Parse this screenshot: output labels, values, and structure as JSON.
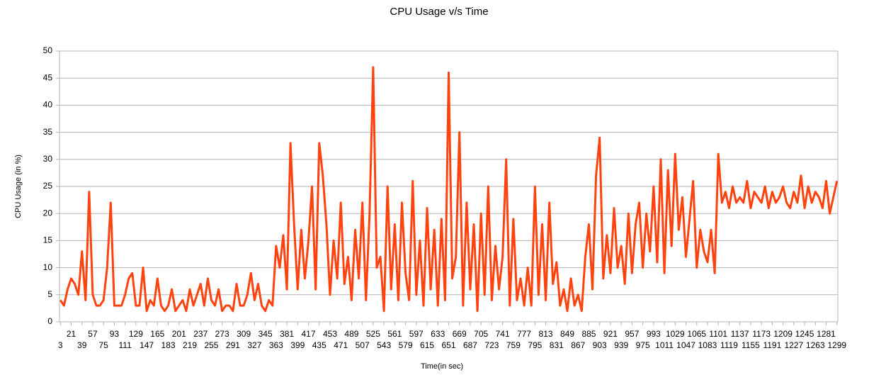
{
  "chart_data": {
    "type": "line",
    "title": "CPU Usage v/s Time",
    "x_label": "Time(in sec)",
    "y_label": "CPU Usage (in %)",
    "x": [
      3,
      9,
      15,
      21,
      27,
      33,
      39,
      45,
      51,
      57,
      63,
      69,
      75,
      81,
      87,
      93,
      99,
      105,
      111,
      117,
      123,
      129,
      135,
      141,
      147,
      153,
      159,
      165,
      171,
      177,
      183,
      189,
      195,
      201,
      207,
      213,
      219,
      225,
      231,
      237,
      243,
      249,
      255,
      261,
      267,
      273,
      279,
      285,
      291,
      297,
      303,
      309,
      315,
      321,
      327,
      333,
      339,
      345,
      351,
      357,
      363,
      369,
      375,
      381,
      387,
      393,
      399,
      405,
      411,
      417,
      423,
      429,
      435,
      441,
      447,
      453,
      459,
      465,
      471,
      477,
      483,
      489,
      495,
      501,
      507,
      513,
      519,
      525,
      531,
      537,
      543,
      549,
      555,
      561,
      567,
      573,
      579,
      585,
      591,
      597,
      603,
      609,
      615,
      621,
      627,
      633,
      639,
      645,
      651,
      657,
      663,
      669,
      675,
      681,
      687,
      693,
      699,
      705,
      711,
      717,
      723,
      729,
      735,
      741,
      747,
      753,
      759,
      765,
      771,
      777,
      783,
      789,
      795,
      801,
      807,
      813,
      819,
      825,
      831,
      837,
      843,
      849,
      855,
      861,
      867,
      873,
      879,
      885,
      891,
      897,
      903,
      909,
      915,
      921,
      927,
      933,
      939,
      945,
      951,
      957,
      963,
      969,
      975,
      981,
      987,
      993,
      999,
      1005,
      1011,
      1017,
      1023,
      1029,
      1035,
      1041,
      1047,
      1053,
      1059,
      1065,
      1071,
      1077,
      1083,
      1089,
      1095,
      1101,
      1107,
      1113,
      1119,
      1125,
      1131,
      1137,
      1143,
      1149,
      1155,
      1161,
      1167,
      1173,
      1179,
      1185,
      1191,
      1197,
      1203,
      1209,
      1215,
      1221,
      1227,
      1233,
      1239,
      1245,
      1251,
      1257,
      1263,
      1269,
      1275,
      1281,
      1287,
      1293,
      1299
    ],
    "values": [
      4,
      3,
      6,
      8,
      7,
      5,
      13,
      4,
      24,
      5,
      3,
      3,
      4,
      10,
      22,
      3,
      3,
      3,
      5,
      8,
      9,
      3,
      3,
      10,
      2,
      4,
      3,
      8,
      3,
      2,
      3,
      6,
      2,
      3,
      4,
      2,
      6,
      3,
      5,
      7,
      3,
      8,
      4,
      3,
      6,
      2,
      3,
      3,
      2,
      7,
      3,
      3,
      5,
      9,
      4,
      7,
      3,
      2,
      4,
      3,
      14,
      10,
      16,
      6,
      33,
      18,
      6,
      17,
      8,
      15,
      25,
      6,
      33,
      27,
      18,
      5,
      15,
      8,
      22,
      7,
      12,
      4,
      17,
      8,
      22,
      4,
      20,
      47,
      10,
      12,
      2,
      25,
      6,
      18,
      4,
      22,
      9,
      4,
      26,
      5,
      15,
      3,
      21,
      6,
      17,
      3,
      19,
      4,
      46,
      8,
      12,
      35,
      3,
      22,
      6,
      18,
      2,
      20,
      5,
      25,
      4,
      14,
      6,
      12,
      30,
      3,
      19,
      4,
      8,
      3,
      10,
      3,
      25,
      5,
      18,
      4,
      22,
      7,
      11,
      3,
      6,
      2,
      8,
      3,
      5,
      2,
      12,
      18,
      6,
      27,
      34,
      8,
      16,
      9,
      21,
      10,
      14,
      7,
      20,
      9,
      18,
      22,
      10,
      20,
      13,
      25,
      11,
      30,
      9,
      28,
      14,
      31,
      17,
      23,
      12,
      19,
      26,
      10,
      17,
      13,
      11,
      17,
      9,
      31,
      22,
      24,
      21,
      25,
      22,
      23,
      22,
      26,
      21,
      24,
      23,
      22,
      25,
      21,
      24,
      22,
      23,
      25,
      22,
      21,
      24,
      22,
      27,
      21,
      25,
      22,
      24,
      23,
      21,
      26,
      20,
      23,
      26
    ],
    "color": "#ff420e",
    "xlim": [
      1.5,
      1300.5
    ],
    "ylim": [
      0,
      50
    ],
    "yticks": [
      0,
      5,
      10,
      15,
      20,
      25,
      30,
      35,
      40,
      45,
      50
    ],
    "xticks": [
      3,
      21,
      39,
      57,
      75,
      93,
      111,
      129,
      147,
      165,
      183,
      201,
      219,
      237,
      255,
      273,
      291,
      309,
      327,
      345,
      363,
      381,
      399,
      417,
      435,
      453,
      471,
      489,
      507,
      525,
      543,
      561,
      579,
      597,
      615,
      633,
      651,
      669,
      687,
      705,
      723,
      741,
      759,
      777,
      795,
      813,
      831,
      849,
      867,
      885,
      903,
      921,
      939,
      957,
      975,
      993,
      1011,
      1029,
      1047,
      1065,
      1083,
      1101,
      1119,
      1137,
      1155,
      1173,
      1191,
      1209,
      1227,
      1245,
      1263,
      1281,
      1299
    ],
    "grid": true
  }
}
